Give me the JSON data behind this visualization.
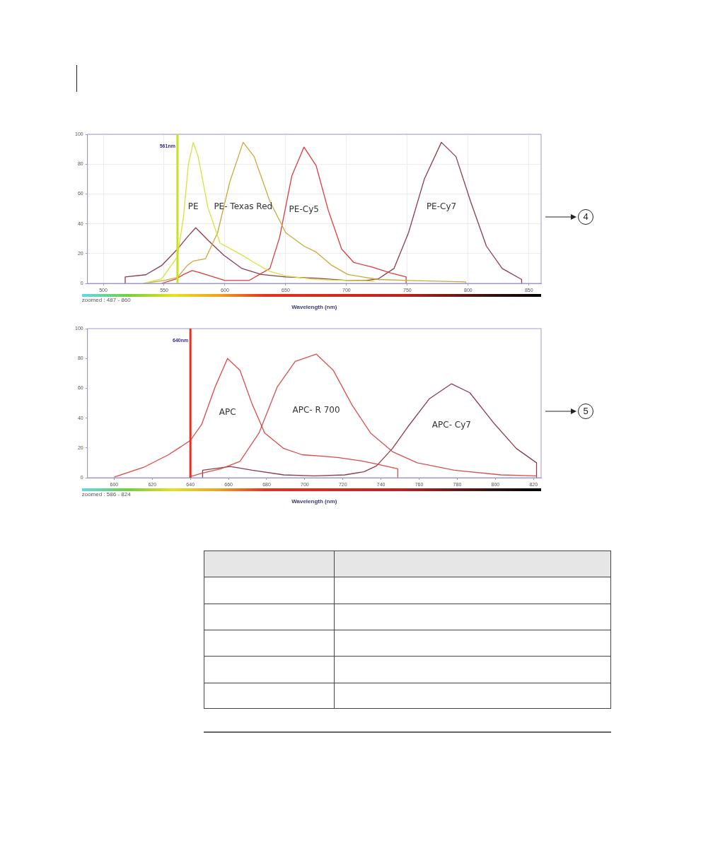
{
  "chart_data": [
    {
      "type": "line",
      "xlabel": "Wavelength (nm)",
      "xlim": [
        487,
        860
      ],
      "xticks": [
        500,
        550,
        600,
        650,
        700,
        750,
        800,
        850
      ],
      "ylim": [
        0,
        100
      ],
      "yticks": [
        0,
        20,
        40,
        60,
        80,
        100
      ],
      "grid": true,
      "legend": false,
      "marker": "none",
      "line_style": "solid",
      "series": [
        {
          "name": "PE",
          "color": "#d6e23a",
          "x": [
            533,
            548,
            561,
            566,
            570,
            574,
            578,
            586,
            596,
            614,
            624,
            637,
            650,
            675,
            700,
            723
          ],
          "values": [
            0,
            3,
            18,
            45,
            80,
            94.6,
            85,
            51,
            27,
            19,
            14,
            8,
            5,
            2.5,
            2,
            1.5
          ]
        },
        {
          "name": "PE- Texas Red",
          "color": "#c9a93a",
          "x": [
            533,
            550,
            561,
            569,
            574,
            584,
            594,
            604,
            615,
            624,
            637,
            650,
            665,
            675,
            688,
            701,
            726,
            751,
            798,
            798
          ],
          "values": [
            0,
            2,
            4,
            12,
            15,
            16.5,
            34,
            68,
            94.6,
            85,
            55,
            34,
            25,
            21,
            12,
            6,
            2.6,
            2,
            1,
            0
          ]
        },
        {
          "name": "PE-Cy5",
          "color": "#e03a3a",
          "x": [
            548,
            560,
            566,
            573,
            580,
            600,
            620,
            637,
            645,
            655,
            665,
            675,
            685,
            696,
            706,
            721,
            736,
            749,
            749
          ],
          "values": [
            0,
            3,
            6,
            8.6,
            7,
            2,
            2,
            10,
            31,
            72,
            91.4,
            79,
            49,
            23,
            14,
            11,
            7,
            4.3,
            0
          ]
        },
        {
          "name": "PE-Cy7",
          "color": "#8e3b4b",
          "x": [
            518,
            518,
            535,
            548,
            561,
            569,
            576,
            586,
            599,
            614,
            630,
            650,
            675,
            701,
            716,
            726,
            739,
            751,
            764,
            778,
            790,
            802,
            815,
            828,
            844,
            844
          ],
          "values": [
            0,
            4.3,
            5.8,
            12,
            23,
            31,
            37.3,
            29,
            19,
            10,
            6,
            4.3,
            3.5,
            2,
            2,
            3,
            10,
            34,
            70,
            94.6,
            85,
            55,
            25,
            10,
            2.6,
            0
          ]
        }
      ],
      "ref_lines": [
        {
          "axis": "x",
          "value": 561,
          "label": "561nm",
          "color": "#c8e020"
        }
      ],
      "annotations": [
        "zoomed : 487 - 860",
        "4"
      ]
    },
    {
      "type": "line",
      "xlabel": "Wavelength (nm)",
      "xlim": [
        586,
        824
      ],
      "xticks": [
        600,
        620,
        640,
        660,
        680,
        700,
        720,
        740,
        760,
        780,
        800,
        820
      ],
      "ylim": [
        0,
        100
      ],
      "yticks": [
        0,
        20,
        40,
        60,
        80,
        100
      ],
      "legend": false,
      "marker": "none",
      "line_style": "solid",
      "series": [
        {
          "name": "APC",
          "color": "#e04848",
          "x": [
            600,
            615.5,
            628.5,
            640,
            646,
            653,
            659.5,
            666,
            672.5,
            679,
            689,
            698.6,
            710,
            718,
            729.6,
            737.7,
            748.8,
            748.8
          ],
          "values": [
            0.4,
            7,
            15.4,
            25,
            36,
            61,
            80,
            72,
            49,
            30,
            19.6,
            15.4,
            14.4,
            13.4,
            11.3,
            9.2,
            6,
            0
          ]
        },
        {
          "name": "APC- R 700",
          "color": "#d85050",
          "x": [
            640,
            640,
            646,
            656,
            666,
            676,
            685.6,
            695,
            706,
            715,
            724.7,
            734.5,
            746,
            759,
            778.5,
            803,
            821.6
          ],
          "values": [
            0,
            0.8,
            3,
            6,
            11,
            30,
            61,
            78,
            82.9,
            72,
            49,
            30,
            17.5,
            10,
            5,
            1.9,
            1.2
          ]
        },
        {
          "name": "APC- Cy7",
          "color": "#8e3b4b",
          "x": [
            646.4,
            646.4,
            656,
            661,
            672.5,
            689,
            705,
            721,
            731,
            737.7,
            746,
            754,
            765.4,
            777,
            786.6,
            799.6,
            811,
            821.6,
            821.6
          ],
          "values": [
            0,
            5,
            6.7,
            7.5,
            5,
            1.9,
            1.2,
            1.9,
            4,
            8,
            19.6,
            34,
            53,
            63,
            57,
            36,
            19.6,
            10,
            0
          ]
        }
      ],
      "ref_lines": [
        {
          "axis": "x",
          "value": 640,
          "label": "640nm",
          "color": "#e83020"
        }
      ],
      "annotations": [
        "zoomed : 586 - 824",
        "5"
      ]
    }
  ]
}
